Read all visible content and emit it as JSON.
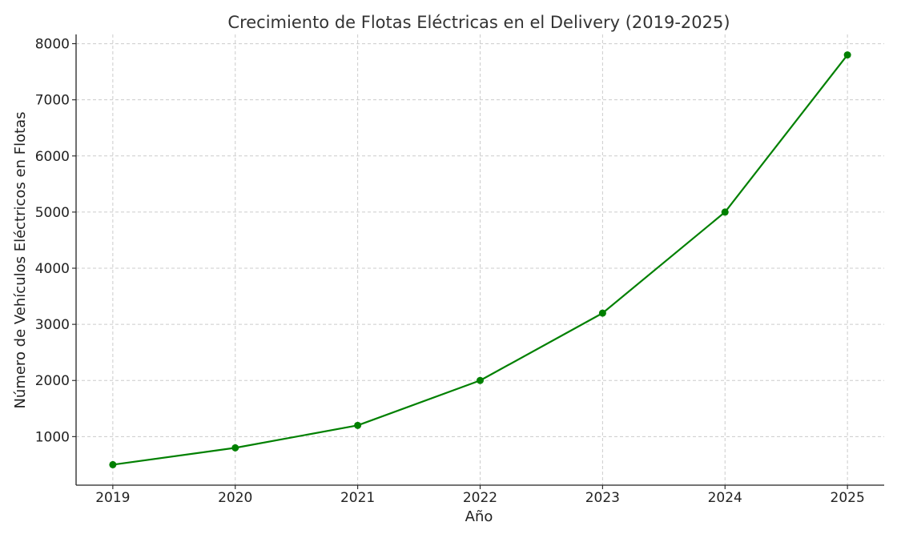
{
  "chart_data": {
    "type": "line",
    "title": "Crecimiento de Flotas Eléctricas en el Delivery (2019-2025)",
    "xlabel": "Año",
    "ylabel": "Número de Vehículos Eléctricos en Flotas",
    "x": [
      2019,
      2020,
      2021,
      2022,
      2023,
      2024,
      2025
    ],
    "x_tick_labels": [
      "2019",
      "2020",
      "2021",
      "2022",
      "2023",
      "2024",
      "2025"
    ],
    "xlim": [
      2018.7,
      2025.3
    ],
    "y_ticks": [
      1000,
      2000,
      3000,
      4000,
      5000,
      6000,
      7000,
      8000
    ],
    "y_tick_labels": [
      "1000",
      "2000",
      "3000",
      "4000",
      "5000",
      "6000",
      "7000",
      "8000"
    ],
    "ylim": [
      135,
      8165
    ],
    "grid": true,
    "series": [
      {
        "values": [
          500,
          800,
          1200,
          2000,
          3200,
          5000,
          7800
        ],
        "color": "#008000",
        "marker": "circle"
      }
    ]
  }
}
